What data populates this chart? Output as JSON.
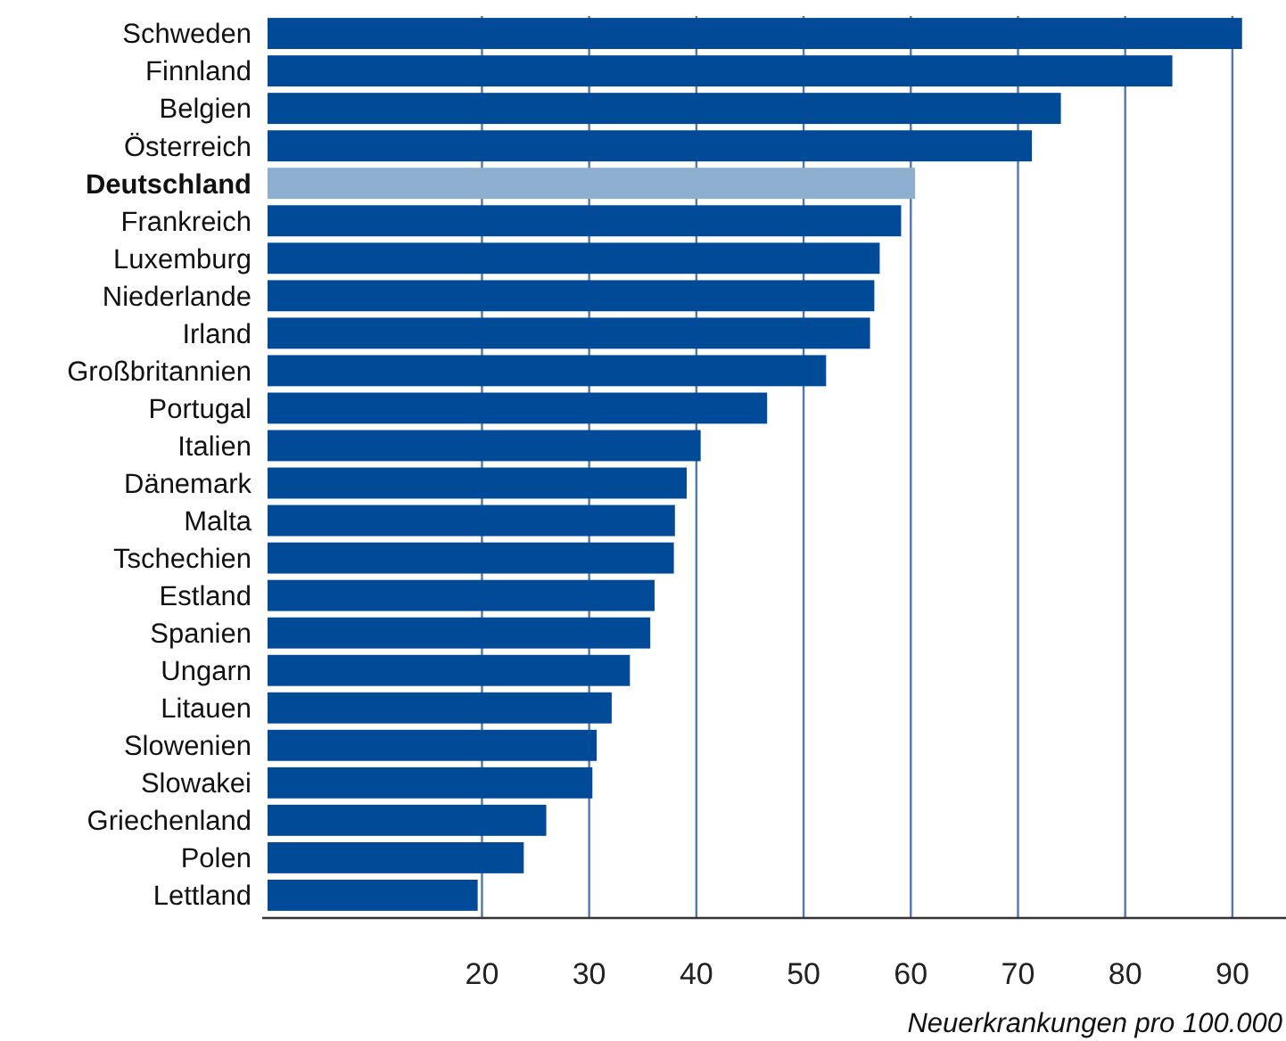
{
  "chart_data": {
    "type": "bar",
    "orientation": "horizontal",
    "xlabel": "Neuerkrankungen pro 100.000",
    "categories": [
      "Schweden",
      "Finnland",
      "Belgien",
      "Österreich",
      "Deutschland",
      "Frankreich",
      "Luxemburg",
      "Niederlande",
      "Irland",
      "Großbritannien",
      "Portugal",
      "Italien",
      "Dänemark",
      "Malta",
      "Tschechien",
      "Estland",
      "Spanien",
      "Ungarn",
      "Litauen",
      "Slowenien",
      "Slowakei",
      "Griechenland",
      "Polen",
      "Lettland"
    ],
    "values": [
      90.9,
      84.4,
      74.0,
      71.3,
      60.4,
      59.1,
      57.1,
      56.6,
      56.2,
      52.1,
      46.6,
      40.4,
      39.1,
      38.0,
      37.9,
      36.1,
      35.7,
      33.8,
      32.1,
      30.7,
      30.3,
      26.0,
      23.9,
      19.6
    ],
    "colors": [
      "#004a98",
      "#004a98",
      "#004a98",
      "#004a98",
      "#8eaed0",
      "#004a98",
      "#004a98",
      "#004a98",
      "#004a98",
      "#004a98",
      "#004a98",
      "#004a98",
      "#004a98",
      "#004a98",
      "#004a98",
      "#004a98",
      "#004a98",
      "#004a98",
      "#004a98",
      "#004a98",
      "#004a98",
      "#004a98",
      "#004a98",
      "#004a98"
    ],
    "xlim": [
      -0.5,
      95
    ],
    "xticks": [
      20,
      30,
      40,
      50,
      60,
      70,
      80,
      90
    ],
    "grid": "x"
  }
}
